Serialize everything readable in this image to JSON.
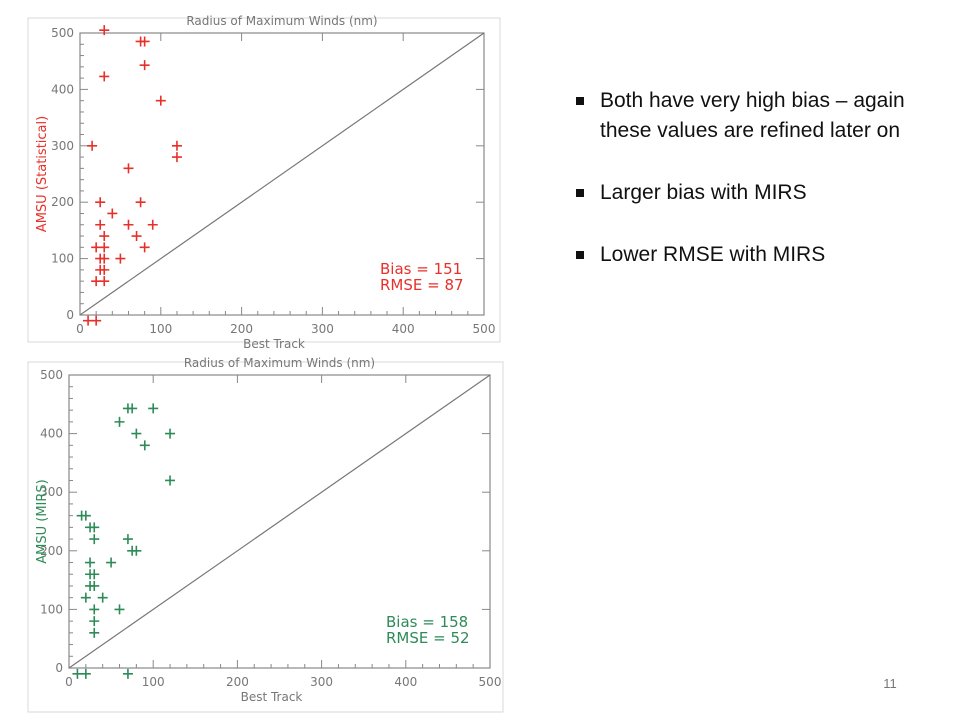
{
  "slide": {
    "bullets": [
      "Both have very high bias – again these values are refined later on",
      "Larger bias with MIRS",
      "Lower RMSE with MIRS"
    ],
    "page_number": "11"
  },
  "chart_data": [
    {
      "type": "scatter",
      "title": "Radius of Maximum Winds (nm)",
      "xlabel": "Best Track",
      "ylabel": "AMSU (Statistical)",
      "xlim": [
        0,
        500
      ],
      "ylim": [
        0,
        500
      ],
      "xticks": [
        "0",
        "100",
        "200",
        "300",
        "400",
        "500"
      ],
      "yticks": [
        "0",
        "100",
        "200",
        "300",
        "400",
        "500"
      ],
      "color": "#e8302a",
      "reference_line": "y = x",
      "annotations": [
        "Bias = 151",
        "RMSE = 87"
      ],
      "points": [
        [
          30,
          505
        ],
        [
          75,
          485
        ],
        [
          80,
          485
        ],
        [
          30,
          423
        ],
        [
          80,
          443
        ],
        [
          100,
          380
        ],
        [
          15,
          300
        ],
        [
          120,
          300
        ],
        [
          120,
          280
        ],
        [
          60,
          260
        ],
        [
          25,
          200
        ],
        [
          75,
          200
        ],
        [
          40,
          180
        ],
        [
          25,
          160
        ],
        [
          60,
          160
        ],
        [
          90,
          160
        ],
        [
          30,
          140
        ],
        [
          70,
          140
        ],
        [
          20,
          120
        ],
        [
          30,
          120
        ],
        [
          80,
          120
        ],
        [
          25,
          100
        ],
        [
          30,
          100
        ],
        [
          50,
          100
        ],
        [
          25,
          80
        ],
        [
          30,
          80
        ],
        [
          20,
          60
        ],
        [
          30,
          60
        ],
        [
          10,
          -10
        ],
        [
          20,
          -10
        ]
      ]
    },
    {
      "type": "scatter",
      "title": "Radius of Maximum Winds (nm)",
      "xlabel": "Best Track",
      "ylabel": "AMSU (MIRS)",
      "xlim": [
        0,
        500
      ],
      "ylim": [
        0,
        500
      ],
      "xticks": [
        "0",
        "100",
        "200",
        "300",
        "400",
        "500"
      ],
      "yticks": [
        "0",
        "100",
        "200",
        "300",
        "400",
        "500"
      ],
      "color": "#2e8b57",
      "reference_line": "y = x",
      "annotations": [
        "Bias = 158",
        "RMSE = 52"
      ],
      "points": [
        [
          70,
          443
        ],
        [
          75,
          443
        ],
        [
          100,
          443
        ],
        [
          60,
          420
        ],
        [
          80,
          400
        ],
        [
          120,
          400
        ],
        [
          90,
          380
        ],
        [
          120,
          320
        ],
        [
          15,
          260
        ],
        [
          20,
          260
        ],
        [
          25,
          240
        ],
        [
          30,
          240
        ],
        [
          30,
          220
        ],
        [
          70,
          220
        ],
        [
          75,
          200
        ],
        [
          80,
          200
        ],
        [
          25,
          180
        ],
        [
          50,
          180
        ],
        [
          25,
          160
        ],
        [
          30,
          160
        ],
        [
          25,
          140
        ],
        [
          30,
          140
        ],
        [
          20,
          120
        ],
        [
          40,
          120
        ],
        [
          30,
          100
        ],
        [
          60,
          100
        ],
        [
          30,
          80
        ],
        [
          30,
          60
        ],
        [
          10,
          -10
        ],
        [
          20,
          -10
        ],
        [
          70,
          -10
        ]
      ]
    }
  ]
}
